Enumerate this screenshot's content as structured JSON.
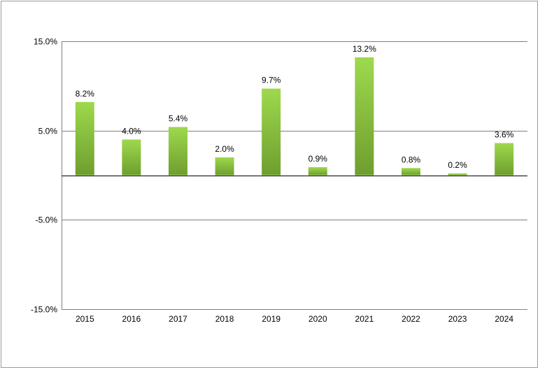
{
  "chart_data": {
    "type": "bar",
    "title": "",
    "xlabel": "",
    "ylabel": "",
    "categories": [
      "2015",
      "2016",
      "2017",
      "2018",
      "2019",
      "2020",
      "2021",
      "2022",
      "2023",
      "2024"
    ],
    "values": [
      8.2,
      4.0,
      5.4,
      2.0,
      9.7,
      0.9,
      13.2,
      0.8,
      0.2,
      3.6
    ],
    "data_labels": [
      "8.2%",
      "4.0%",
      "5.4%",
      "2.0%",
      "9.7%",
      "0.9%",
      "13.2%",
      "0.8%",
      "0.2%",
      "3.6%"
    ],
    "ylim": [
      -15,
      15
    ],
    "yticks": [
      15,
      5,
      -5,
      -15
    ],
    "ytick_labels": [
      "15.0%",
      "5.0%",
      "-5.0%",
      "-15.0%"
    ],
    "grid": true,
    "legend": "none",
    "colors": {
      "bar_top": "#9ed94d",
      "bar_bottom": "#6e9e2e",
      "grid": "#7f7f7f",
      "zero_line": "#000000",
      "frame": "#9a9a9a"
    }
  }
}
